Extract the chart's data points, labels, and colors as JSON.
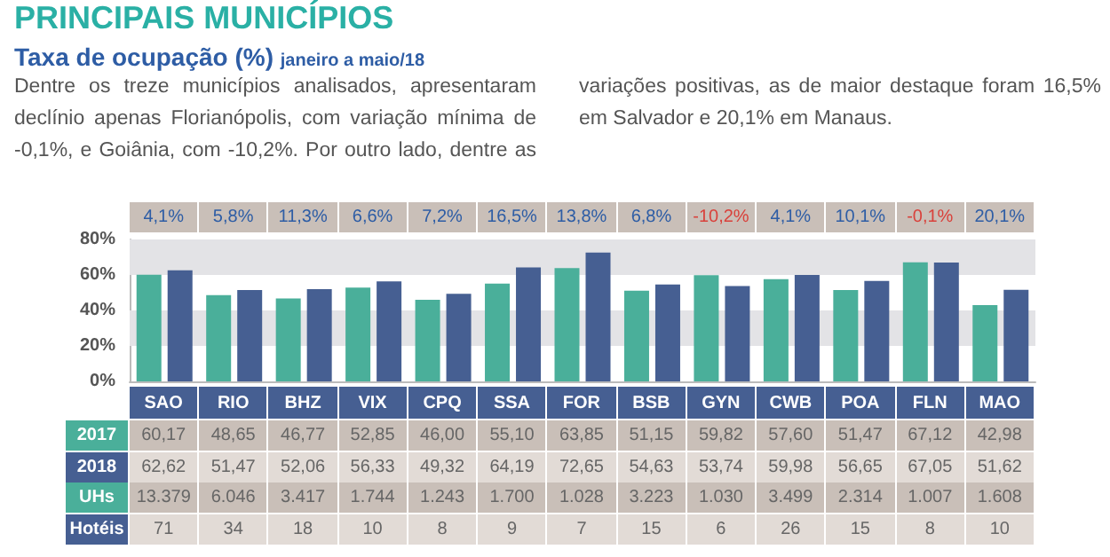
{
  "chart_data": {
    "type": "bar",
    "title": "PRINCIPAIS MUNICÍPIOS",
    "subtitle": "Taxa de ocupação (%)",
    "categories": [
      "SAO",
      "RIO",
      "BHZ",
      "VIX",
      "CPQ",
      "SSA",
      "FOR",
      "BSB",
      "GYN",
      "CWB",
      "POA",
      "FLN",
      "MAO"
    ],
    "series": [
      {
        "name": "2017",
        "color": "#4aaf9a",
        "values": [
          60.17,
          48.65,
          46.77,
          52.85,
          46.0,
          55.1,
          63.85,
          51.15,
          59.82,
          57.6,
          51.47,
          67.12,
          42.98
        ],
        "value_labels": [
          "60,17",
          "48,65",
          "46,77",
          "52,85",
          "46,00",
          "55,10",
          "63,85",
          "51,15",
          "59,82",
          "57,60",
          "51,47",
          "67,12",
          "42,98"
        ]
      },
      {
        "name": "2018",
        "color": "#465f92",
        "values": [
          62.62,
          51.47,
          52.06,
          56.33,
          49.32,
          64.19,
          72.65,
          54.63,
          53.74,
          59.98,
          56.65,
          67.05,
          51.62
        ],
        "value_labels": [
          "62,62",
          "51,47",
          "52,06",
          "56,33",
          "49,32",
          "64,19",
          "72,65",
          "54,63",
          "53,74",
          "59,98",
          "56,65",
          "67,05",
          "51,62"
        ]
      }
    ],
    "ylim": [
      0,
      80
    ],
    "yticks": [
      {
        "value": 0,
        "label": "0%"
      },
      {
        "value": 20,
        "label": "20%"
      },
      {
        "value": 40,
        "label": "40%"
      },
      {
        "value": 60,
        "label": "60%"
      },
      {
        "value": 80,
        "label": "80%"
      }
    ],
    "legend": false,
    "bands": [
      {
        "axis": "y",
        "from": 20,
        "to": 40,
        "color": "#e3e3e6"
      },
      {
        "axis": "y",
        "from": 60,
        "to": 80,
        "color": "#e3e3e6"
      }
    ],
    "annotations": [
      "janeiro a maio/18",
      "Dentre os treze municípios analisados, apresentaram declínio apenas Florianópolis, com variação mínima de -0,1%, e Goiânia, com -10,2%. Por outro lado, dentre as variações positivas, as de maior destaque foram 16,5% em Salvador e 20,1% em Manaus.",
      "4,1%",
      "5,8%",
      "11,3%",
      "6,6%",
      "7,2%",
      "16,5%",
      "13,8%",
      "6,8%",
      "-10,2%",
      "4,1%",
      "10,1%",
      "-0,1%",
      "20,1%",
      "UHs",
      "13.379",
      "6.046",
      "3.417",
      "1.744",
      "1.243",
      "1.700",
      "1.028",
      "3.223",
      "1.030",
      "3.499",
      "2.314",
      "1.007",
      "1.608",
      "Hotéis",
      "71",
      "34",
      "18",
      "10",
      "8",
      "9",
      "7",
      "15",
      "6",
      "26",
      "15",
      "8",
      "10"
    ]
  }
}
